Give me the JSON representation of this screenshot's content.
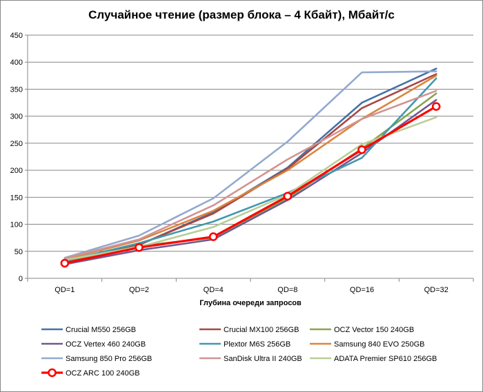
{
  "chart_data": {
    "type": "line",
    "title": "Случайное чтение (размер блока – 4 Кбайт), Мбайт/с",
    "xlabel": "Глубина очереди запросов",
    "ylabel": "",
    "categories": [
      "QD=1",
      "QD=2",
      "QD=4",
      "QD=8",
      "QD=16",
      "QD=32"
    ],
    "ylim": [
      0,
      450
    ],
    "yticks": [
      0,
      50,
      100,
      150,
      200,
      250,
      300,
      350,
      400,
      450
    ],
    "grid": true,
    "legend_position": "bottom",
    "series": [
      {
        "name": "Crucial M550 256GB",
        "color": "#4572A7",
        "values": [
          33,
          62,
          122,
          205,
          325,
          388
        ]
      },
      {
        "name": "Crucial MX100 256GB",
        "color": "#AA4643",
        "values": [
          32,
          62,
          120,
          203,
          315,
          378
        ]
      },
      {
        "name": "OCZ Vector 150 240GB",
        "color": "#89A54E",
        "values": [
          30,
          60,
          75,
          148,
          240,
          342
        ]
      },
      {
        "name": "OCZ Vertex 460 240GB",
        "color": "#71588F",
        "values": [
          26,
          52,
          72,
          145,
          232,
          330
        ]
      },
      {
        "name": "Plextor M6S 256GB",
        "color": "#4198AF",
        "values": [
          32,
          65,
          105,
          158,
          223,
          370
        ]
      },
      {
        "name": "Samsung 840 EVO 250GB",
        "color": "#DB843D",
        "values": [
          35,
          70,
          125,
          200,
          295,
          375
        ]
      },
      {
        "name": "Samsung 850 Pro 256GB",
        "color": "#93A9CF",
        "values": [
          38,
          79,
          148,
          253,
          381,
          383
        ]
      },
      {
        "name": "SanDisk Ultra II 240GB",
        "color": "#D19392",
        "values": [
          37,
          72,
          135,
          220,
          295,
          347
        ]
      },
      {
        "name": "ADATA Premier SP610 256GB",
        "color": "#B9CD96",
        "values": [
          34,
          58,
          95,
          155,
          248,
          298
        ]
      },
      {
        "name": "OCZ ARC 100 240GB",
        "color": "#FF0000",
        "values": [
          28,
          57,
          77,
          152,
          238,
          318
        ],
        "markers": true
      }
    ]
  }
}
